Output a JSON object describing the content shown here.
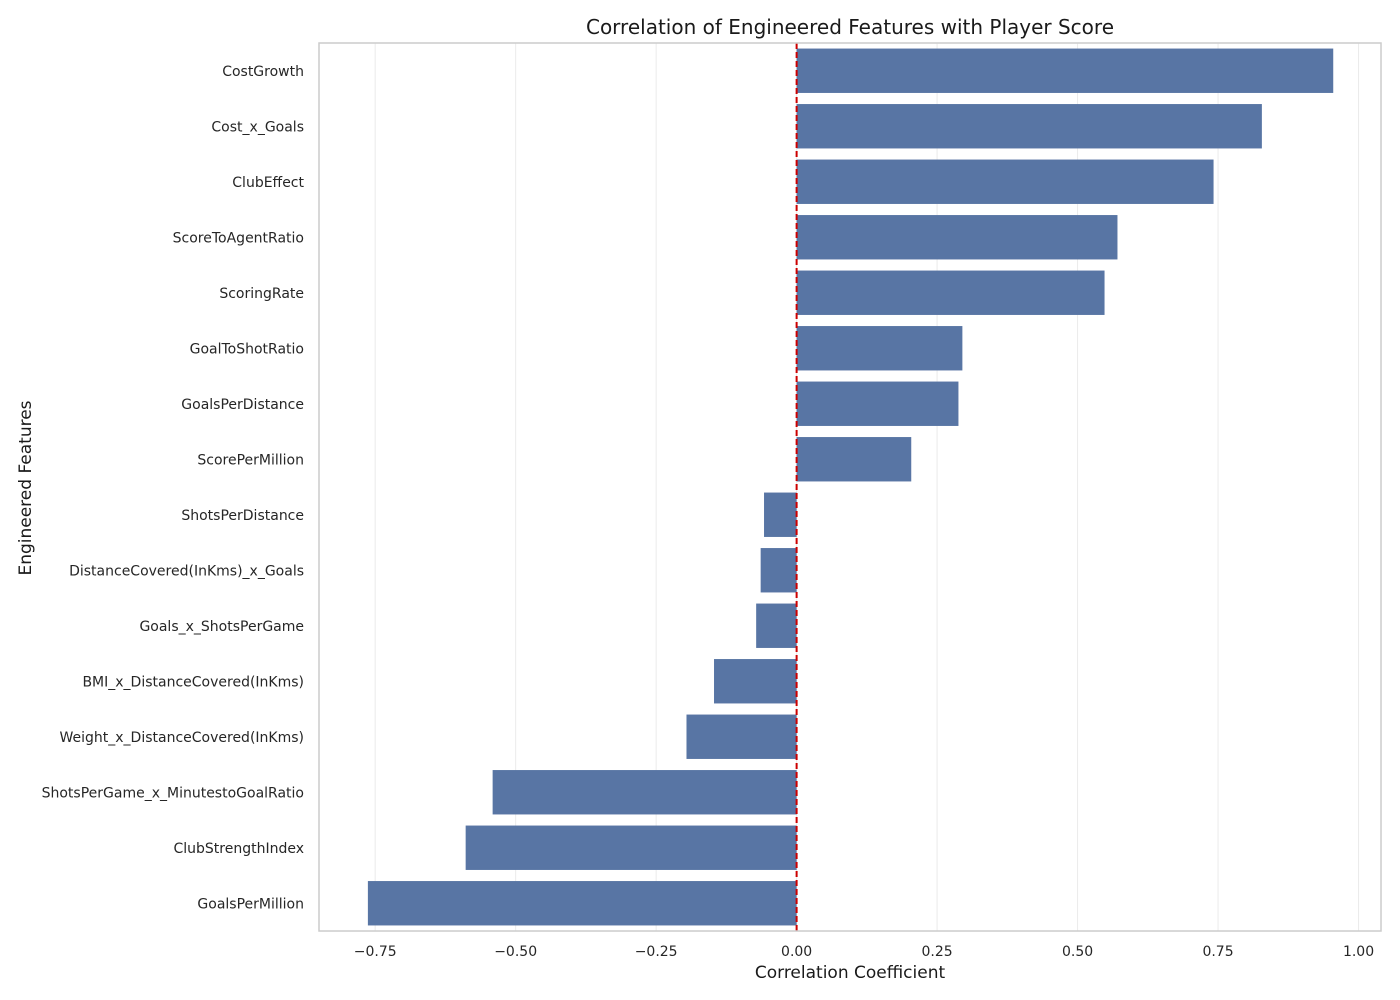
{
  "chart_data": {
    "type": "bar",
    "orientation": "horizontal",
    "title": "Correlation of Engineered Features with Player Score",
    "xlabel": "Correlation Coefficient",
    "ylabel": "Engineered Features",
    "xlim": [
      -0.85,
      1.04
    ],
    "xticks": [
      -0.75,
      -0.5,
      -0.25,
      0.0,
      0.25,
      0.5,
      0.75,
      1.0
    ],
    "xtick_labels": [
      "−0.75",
      "−0.50",
      "−0.25",
      "0.00",
      "0.25",
      "0.50",
      "0.75",
      "1.00"
    ],
    "categories": [
      "CostGrowth",
      "Cost_x_Goals",
      "ClubEffect",
      "ScoreToAgentRatio",
      "ScoringRate",
      "GoalToShotRatio",
      "GoalsPerDistance",
      "ScorePerMillion",
      "ShotsPerDistance",
      "DistanceCovered(InKms)_x_Goals",
      "Goals_x_ShotsPerGame",
      "BMI_x_DistanceCovered(InKms)",
      "Weight_x_DistanceCovered(InKms)",
      "ShotsPerGame_x_MinutestoGoalRatio",
      "ClubStrengthIndex",
      "GoalsPerMillion"
    ],
    "values": [
      0.955,
      0.828,
      0.742,
      0.571,
      0.548,
      0.295,
      0.288,
      0.204,
      -0.058,
      -0.064,
      -0.072,
      -0.147,
      -0.196,
      -0.541,
      -0.589,
      -0.763
    ],
    "bar_color": "#5875a4",
    "reference_line": {
      "x": 0.0,
      "color": "#cc0000",
      "style": "dashed"
    },
    "grid": "x"
  }
}
